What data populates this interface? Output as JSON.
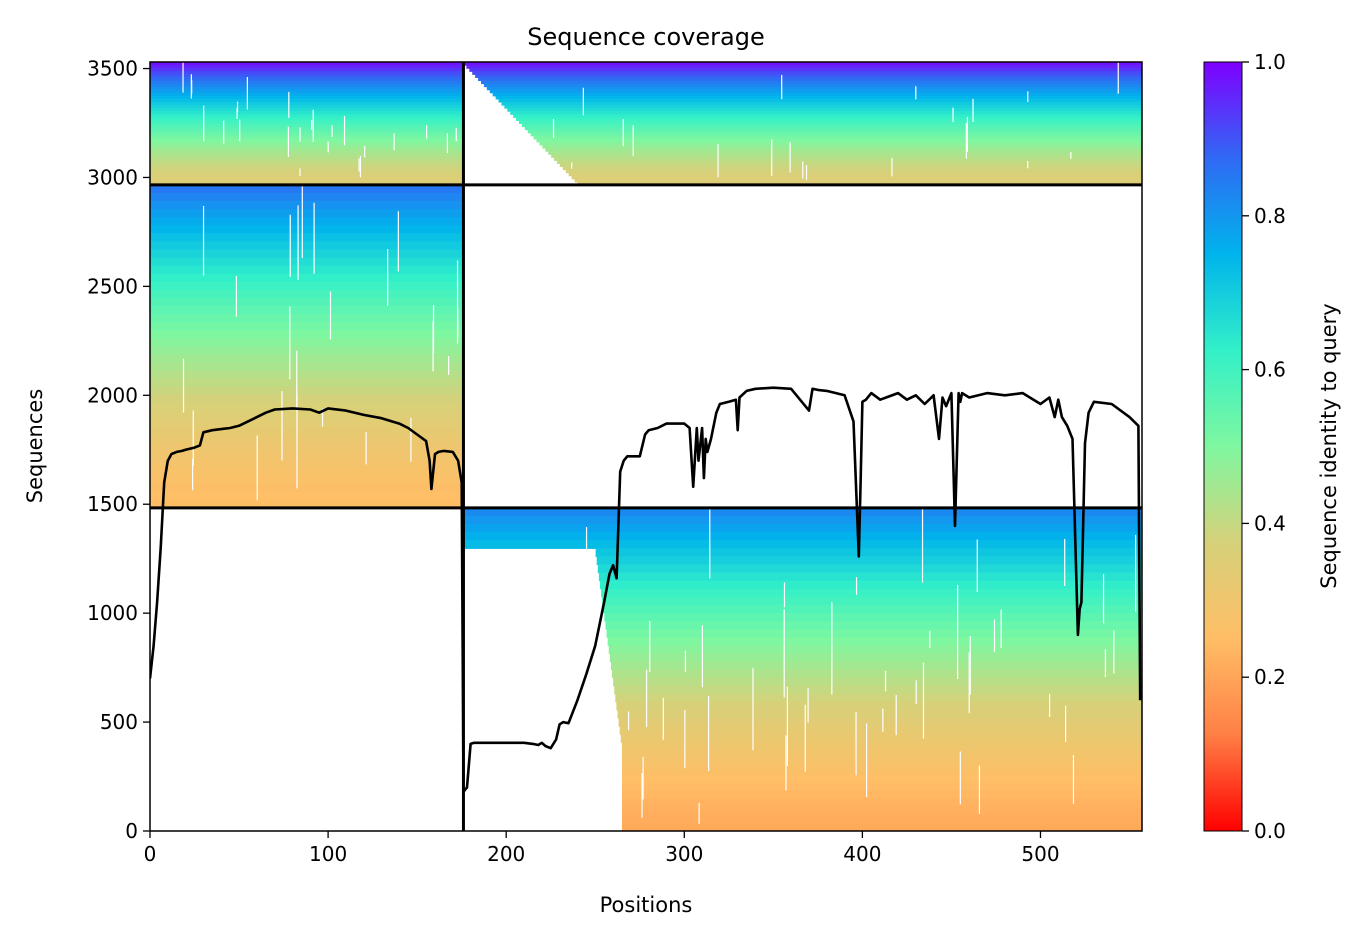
{
  "chart_data": {
    "type": "heatmap",
    "title": "Sequence coverage",
    "xlabel": "Positions",
    "ylabel": "Sequences",
    "xlim": [
      0,
      557
    ],
    "ylim": [
      0,
      3530
    ],
    "xticks": [
      0,
      100,
      200,
      300,
      400,
      500
    ],
    "yticks": [
      0,
      500,
      1000,
      1500,
      2000,
      2500,
      3000,
      3500
    ],
    "grid": false,
    "colormap": "rainbow",
    "colorbar": {
      "label": "Sequence identity to query",
      "range": [
        0.0,
        1.0
      ],
      "ticks": [
        "0.0",
        "0.2",
        "0.4",
        "0.6",
        "0.8",
        "1.0"
      ],
      "stops": [
        "#ff0000",
        "#ff7f45",
        "#ffbe66",
        "#d6d17a",
        "#7ff7a0",
        "#32f0c8",
        "#00b4ec",
        "#3069f4",
        "#7f00ff"
      ]
    },
    "block_boundaries": {
      "positions": [
        176
      ],
      "sequences": [
        1483,
        2966
      ]
    },
    "blocks": [
      {
        "x": [
          0,
          176
        ],
        "y": [
          2966,
          3530
        ],
        "identity_bottom": 0.35,
        "identity_top": 0.98
      },
      {
        "x": [
          176,
          557
        ],
        "y": [
          2966,
          3530
        ],
        "identity_bottom": 0.35,
        "identity_top": 0.98,
        "coverage_start": [
          240,
          1
        ]
      },
      {
        "x": [
          0,
          176
        ],
        "y": [
          1483,
          2966
        ],
        "identity_bottom": 0.25,
        "identity_top": 0.85
      },
      {
        "x": [
          176,
          557
        ],
        "y": [
          0,
          1483
        ],
        "identity_bottom": 0.21,
        "identity_top": 0.82
      }
    ],
    "coverage_line": {
      "color": "#000000",
      "x": [
        0,
        2,
        4,
        6,
        8,
        10,
        12,
        15,
        18,
        20,
        25,
        28,
        30,
        35,
        40,
        45,
        50,
        55,
        60,
        65,
        70,
        80,
        90,
        95,
        100,
        110,
        120,
        130,
        140,
        145,
        150,
        155,
        157,
        158,
        160,
        162,
        165,
        170,
        173,
        175,
        176,
        177,
        178,
        180,
        182,
        185,
        190,
        200,
        210,
        215,
        218,
        220,
        222,
        225,
        228,
        230,
        232,
        235,
        240,
        245,
        250,
        255,
        258,
        260,
        262,
        264,
        266,
        268,
        270,
        275,
        278,
        280,
        285,
        290,
        300,
        303,
        305,
        307,
        308,
        310,
        311,
        312,
        313,
        315,
        318,
        320,
        325,
        329,
        330,
        331,
        335,
        340,
        350,
        360,
        370,
        372,
        375,
        380,
        390,
        395,
        398,
        399,
        400,
        402,
        405,
        410,
        420,
        425,
        430,
        435,
        440,
        443,
        445,
        447,
        450,
        452,
        454,
        455,
        456,
        460,
        470,
        480,
        490,
        500,
        505,
        508,
        510,
        512,
        515,
        518,
        520,
        521,
        522,
        523,
        525,
        527,
        530,
        540,
        550,
        555,
        556
      ],
      "y": [
        700,
        850,
        1050,
        1300,
        1600,
        1700,
        1730,
        1740,
        1745,
        1750,
        1760,
        1770,
        1830,
        1840,
        1845,
        1850,
        1860,
        1880,
        1900,
        1920,
        1935,
        1940,
        1935,
        1920,
        1940,
        1930,
        1910,
        1895,
        1870,
        1850,
        1820,
        1790,
        1700,
        1570,
        1730,
        1740,
        1745,
        1740,
        1700,
        1600,
        180,
        190,
        200,
        400,
        405,
        405,
        405,
        405,
        405,
        400,
        395,
        405,
        390,
        380,
        420,
        490,
        500,
        495,
        600,
        720,
        850,
        1050,
        1180,
        1220,
        1160,
        1650,
        1700,
        1720,
        1720,
        1720,
        1820,
        1840,
        1850,
        1870,
        1870,
        1850,
        1580,
        1850,
        1700,
        1850,
        1620,
        1800,
        1740,
        1800,
        1920,
        1960,
        1970,
        1980,
        1840,
        1990,
        2020,
        2030,
        2035,
        2030,
        1930,
        2030,
        2025,
        2020,
        2000,
        1880,
        1260,
        1600,
        1970,
        1980,
        2010,
        1980,
        2010,
        1980,
        2000,
        1960,
        2000,
        1800,
        1990,
        1950,
        2010,
        1400,
        2010,
        1970,
        2010,
        1990,
        2010,
        2000,
        2010,
        1960,
        1990,
        1900,
        1980,
        1900,
        1860,
        1800,
        1200,
        900,
        1020,
        1050,
        1780,
        1920,
        1970,
        1960,
        1900,
        1860,
        600
      ]
    }
  }
}
